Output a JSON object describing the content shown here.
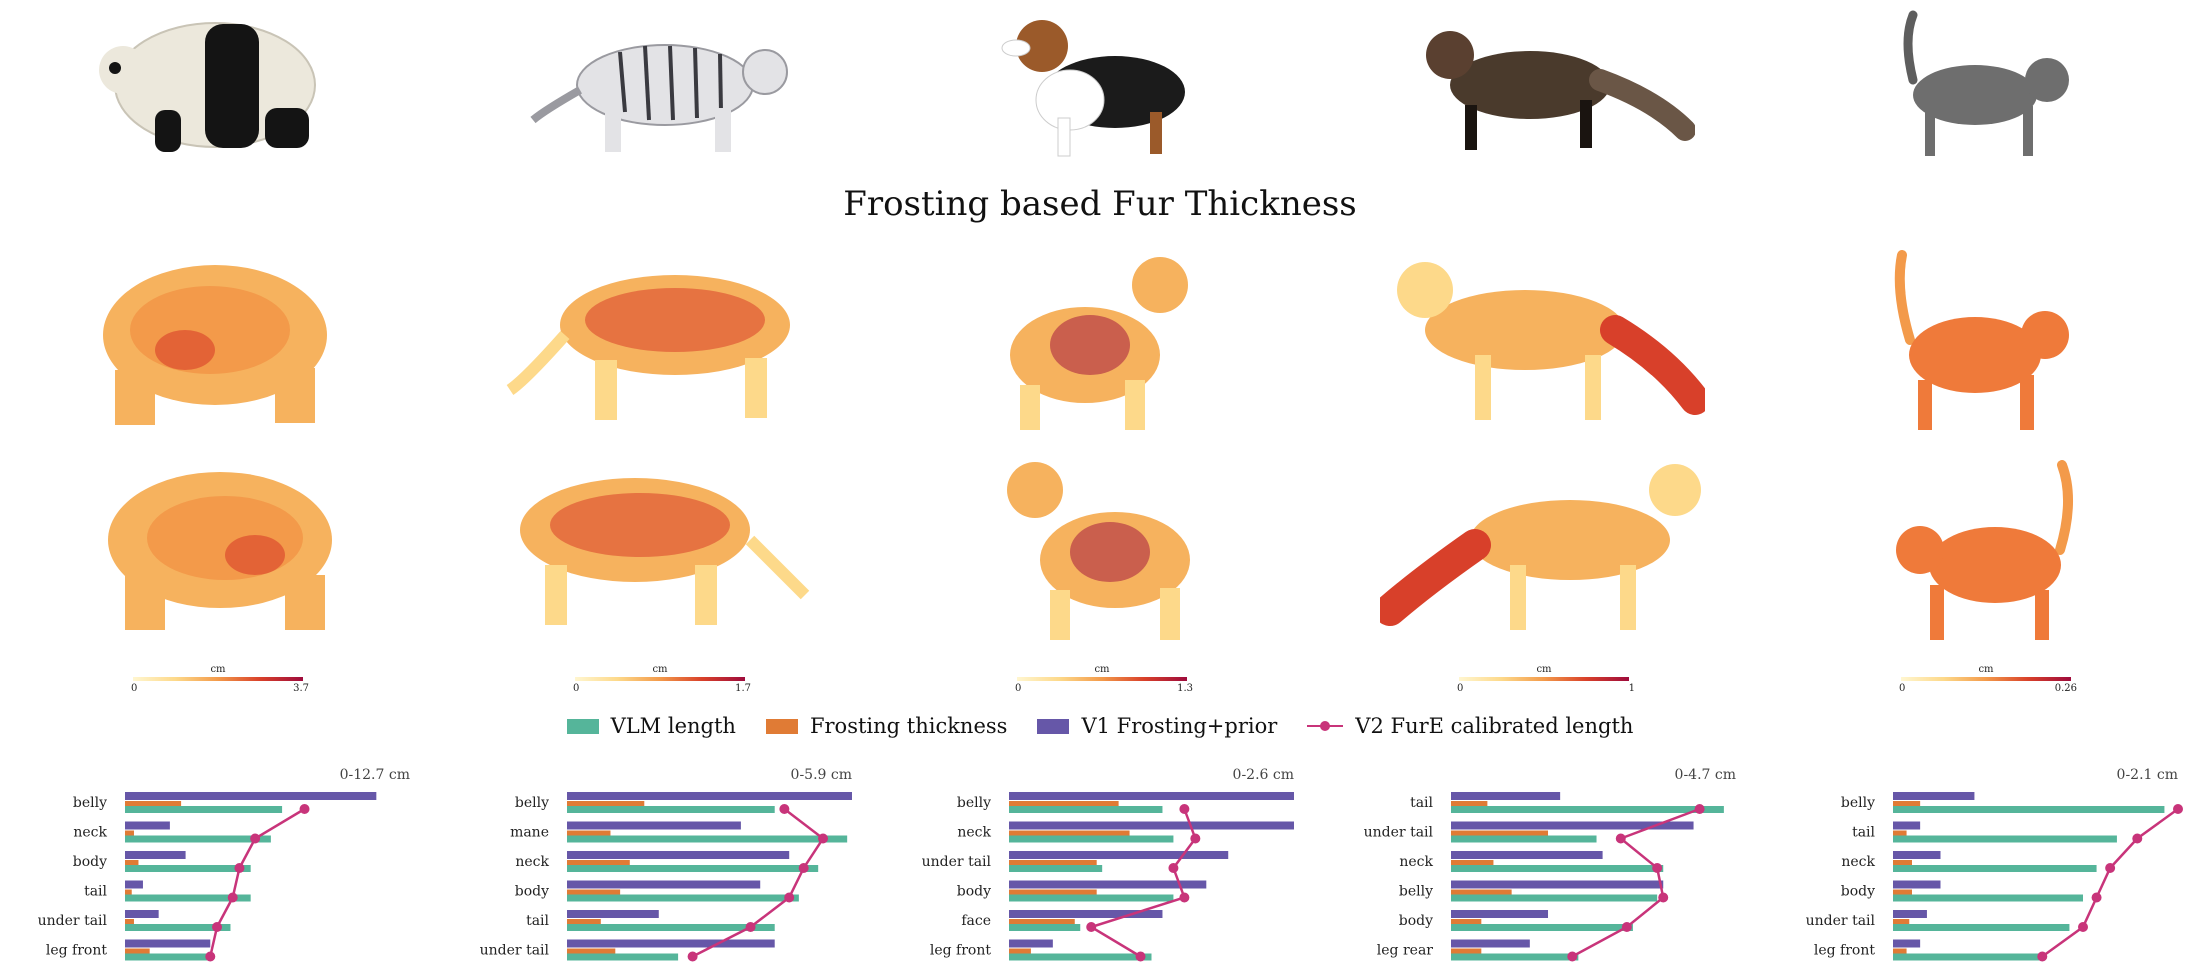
{
  "title": "Frosting based Fur Thickness",
  "animals": [
    {
      "name": "panda",
      "colorbar": {
        "unit": "cm",
        "min": "0",
        "max": "3.7"
      }
    },
    {
      "name": "tiger",
      "colorbar": {
        "unit": "cm",
        "min": "0",
        "max": "1.7"
      }
    },
    {
      "name": "beagle",
      "colorbar": {
        "unit": "cm",
        "min": "0",
        "max": "1.3"
      }
    },
    {
      "name": "fox",
      "colorbar": {
        "unit": "cm",
        "min": "0",
        "max": "1"
      }
    },
    {
      "name": "cat",
      "colorbar": {
        "unit": "cm",
        "min": "0",
        "max": "0.26"
      }
    }
  ],
  "legend": {
    "vlm": "VLM length",
    "frosting": "Frosting thickness",
    "v1": "V1 Frosting+prior",
    "v2": "V2 FurE calibrated length"
  },
  "colors": {
    "vlm": "#55b59a",
    "frosting": "#e07b35",
    "v1": "#6657a8",
    "v2": "#c8347a",
    "colormap": [
      "#fff6d0",
      "#fdd98a",
      "#f39a4a",
      "#d8402a",
      "#9e0b3c"
    ]
  },
  "chart_data": [
    {
      "type": "bar",
      "range_label": "0-12.7 cm",
      "xlim": [
        0,
        12.7
      ],
      "categories": [
        "belly",
        "neck",
        "body",
        "tail",
        "under tail",
        "leg front"
      ],
      "series": [
        {
          "name": "V1 Frosting+prior",
          "values": [
            11.2,
            2.0,
            2.7,
            0.8,
            1.5,
            3.8
          ]
        },
        {
          "name": "Frosting thickness",
          "values": [
            2.5,
            0.4,
            0.6,
            0.3,
            0.4,
            1.1
          ]
        },
        {
          "name": "VLM length",
          "values": [
            7.0,
            6.5,
            5.6,
            5.6,
            4.7,
            3.7
          ]
        },
        {
          "name": "V2 FurE calibrated length",
          "values": [
            8.0,
            5.8,
            5.1,
            4.8,
            4.1,
            3.8
          ]
        }
      ]
    },
    {
      "type": "bar",
      "range_label": "0-5.9 cm",
      "xlim": [
        0,
        5.9
      ],
      "categories": [
        "belly",
        "mane",
        "neck",
        "body",
        "tail",
        "under tail"
      ],
      "series": [
        {
          "name": "V1 Frosting+prior",
          "values": [
            5.9,
            3.6,
            4.6,
            4.0,
            1.9,
            4.3
          ]
        },
        {
          "name": "Frosting thickness",
          "values": [
            1.6,
            0.9,
            1.3,
            1.1,
            0.7,
            1.0
          ]
        },
        {
          "name": "VLM length",
          "values": [
            4.3,
            5.8,
            5.2,
            4.8,
            4.3,
            2.3
          ]
        },
        {
          "name": "V2 FurE calibrated length",
          "values": [
            4.5,
            5.3,
            4.9,
            4.6,
            3.8,
            2.6
          ]
        }
      ]
    },
    {
      "type": "bar",
      "range_label": "0-2.6 cm",
      "xlim": [
        0,
        2.6
      ],
      "categories": [
        "belly",
        "neck",
        "under tail",
        "body",
        "face",
        "leg front"
      ],
      "series": [
        {
          "name": "V1 Frosting+prior",
          "values": [
            2.6,
            2.6,
            2.0,
            1.8,
            1.4,
            0.4
          ]
        },
        {
          "name": "Frosting thickness",
          "values": [
            1.0,
            1.1,
            0.8,
            0.8,
            0.6,
            0.2
          ]
        },
        {
          "name": "VLM length",
          "values": [
            1.4,
            1.5,
            0.85,
            1.5,
            0.65,
            1.3
          ]
        },
        {
          "name": "V2 FurE calibrated length",
          "values": [
            1.6,
            1.7,
            1.5,
            1.6,
            0.75,
            1.2
          ]
        }
      ]
    },
    {
      "type": "bar",
      "range_label": "0-4.7 cm",
      "xlim": [
        0,
        4.7
      ],
      "categories": [
        "tail",
        "under tail",
        "neck",
        "belly",
        "body",
        "leg rear"
      ],
      "series": [
        {
          "name": "V1 Frosting+prior",
          "values": [
            1.8,
            4.0,
            2.5,
            3.5,
            1.6,
            1.3
          ]
        },
        {
          "name": "Frosting thickness",
          "values": [
            0.6,
            1.6,
            0.7,
            1.0,
            0.5,
            0.5
          ]
        },
        {
          "name": "VLM length",
          "values": [
            4.5,
            2.4,
            3.5,
            3.4,
            3.0,
            2.1
          ]
        },
        {
          "name": "V2 FurE calibrated length",
          "values": [
            4.1,
            2.8,
            3.4,
            3.5,
            2.9,
            2.0
          ]
        }
      ]
    },
    {
      "type": "bar",
      "range_label": "0-2.1 cm",
      "xlim": [
        0,
        2.1
      ],
      "categories": [
        "belly",
        "tail",
        "neck",
        "body",
        "under tail",
        "leg front"
      ],
      "series": [
        {
          "name": "V1 Frosting+prior",
          "values": [
            0.6,
            0.2,
            0.35,
            0.35,
            0.25,
            0.2
          ]
        },
        {
          "name": "Frosting thickness",
          "values": [
            0.2,
            0.1,
            0.14,
            0.14,
            0.12,
            0.1
          ]
        },
        {
          "name": "VLM length",
          "values": [
            2.0,
            1.65,
            1.5,
            1.4,
            1.3,
            1.1
          ]
        },
        {
          "name": "V2 FurE calibrated length",
          "values": [
            2.1,
            1.8,
            1.6,
            1.5,
            1.4,
            1.1
          ]
        }
      ]
    }
  ]
}
